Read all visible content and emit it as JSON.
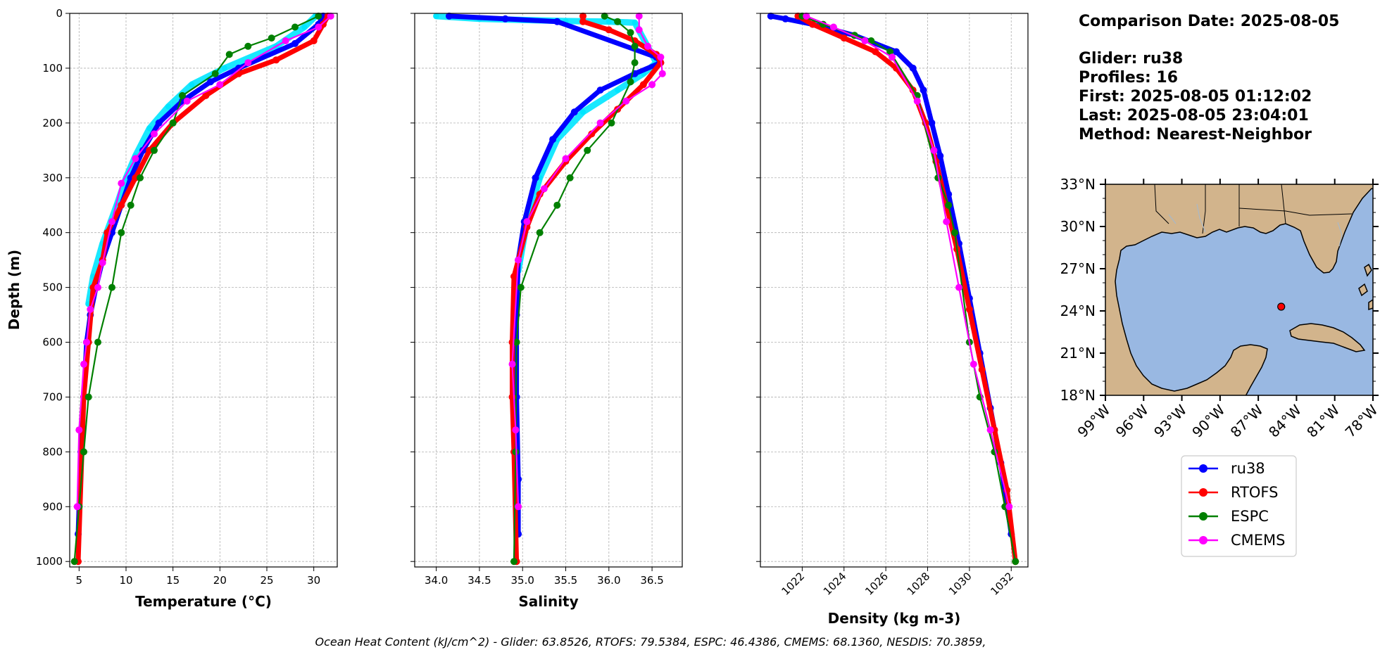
{
  "chart_data": [
    {
      "type": "line",
      "panel": "temperature",
      "xlabel": "Temperature (°C)",
      "ylabel": "Depth (m)",
      "xlim": [
        4,
        32.5
      ],
      "ylim": [
        1010,
        0
      ],
      "xticks": [
        "5",
        "10",
        "15",
        "20",
        "25",
        "30"
      ],
      "yticks": [
        "0",
        "100",
        "200",
        "300",
        "400",
        "500",
        "600",
        "700",
        "800",
        "900",
        "1000"
      ],
      "grid": true,
      "series": [
        {
          "name": "ru38-spread",
          "color": "#00e5ff",
          "x": [
            30.2,
            29.0,
            26.0,
            20.5,
            17.0,
            14.5,
            12.5,
            11.0,
            10.0,
            9.0,
            7.5,
            6.5,
            6.0
          ],
          "y": [
            5,
            25,
            60,
            100,
            130,
            170,
            210,
            260,
            300,
            350,
            420,
            480,
            530
          ]
        },
        {
          "name": "ru38",
          "color": "#0000ff",
          "x": [
            31.0,
            30.5,
            28.0,
            22.0,
            19.0,
            16.0,
            13.5,
            11.8,
            10.5,
            9.5,
            8.5,
            7.5,
            6.8,
            6.2,
            5.8,
            5.5,
            5.2,
            5.0,
            4.9
          ],
          "y": [
            5,
            20,
            55,
            100,
            125,
            160,
            200,
            250,
            300,
            350,
            400,
            450,
            500,
            550,
            600,
            700,
            800,
            900,
            950
          ]
        },
        {
          "name": "RTOFS",
          "color": "#ff0000",
          "x": [
            31.5,
            31.0,
            30.0,
            26.0,
            22.0,
            18.5,
            15.0,
            12.5,
            11.0,
            9.5,
            8.0,
            7.5,
            6.5,
            6.0,
            5.5,
            5.3,
            4.9
          ],
          "y": [
            5,
            20,
            50,
            85,
            110,
            150,
            200,
            250,
            300,
            350,
            400,
            450,
            500,
            600,
            700,
            800,
            1000
          ]
        },
        {
          "name": "ESPC",
          "color": "#008000",
          "x": [
            30.5,
            28.0,
            25.5,
            23.0,
            21.0,
            19.5,
            16.0,
            15.0,
            13.0,
            11.5,
            10.5,
            9.5,
            8.5,
            7.0,
            6.0,
            5.5,
            5.0,
            4.5
          ],
          "y": [
            5,
            25,
            45,
            60,
            75,
            110,
            150,
            200,
            250,
            300,
            350,
            400,
            500,
            600,
            700,
            800,
            900,
            1000
          ]
        },
        {
          "name": "CMEMS",
          "color": "#ff00ff",
          "x": [
            31.8,
            30.5,
            27.0,
            23.0,
            20.0,
            16.5,
            13.0,
            11.0,
            9.5,
            8.5,
            7.5,
            7.0,
            6.2,
            5.8,
            5.5,
            5.0,
            4.8
          ],
          "y": [
            5,
            25,
            50,
            90,
            130,
            160,
            220,
            265,
            310,
            380,
            455,
            500,
            540,
            600,
            640,
            760,
            900
          ]
        }
      ]
    },
    {
      "type": "line",
      "panel": "salinity",
      "xlabel": "Salinity",
      "xlim": [
        33.75,
        36.85
      ],
      "ylim": [
        1010,
        0
      ],
      "xticks": [
        "34.0",
        "34.5",
        "35.0",
        "35.5",
        "36.0",
        "36.5"
      ],
      "grid": true,
      "series": [
        {
          "name": "ru38-spread",
          "color": "#00e5ff",
          "x": [
            34.0,
            34.5,
            35.0,
            35.5,
            36.0,
            36.3,
            36.55,
            36.4,
            36.1,
            35.7,
            35.4,
            35.2,
            35.05,
            34.95
          ],
          "y": [
            5,
            10,
            12,
            14,
            15,
            17,
            90,
            110,
            140,
            180,
            230,
            300,
            380,
            470
          ]
        },
        {
          "name": "ru38",
          "color": "#0000ff",
          "x": [
            34.15,
            34.8,
            35.4,
            36.55,
            36.6,
            36.3,
            35.9,
            35.6,
            35.35,
            35.15,
            35.02,
            34.95,
            34.93,
            34.93,
            34.95,
            34.95
          ],
          "y": [
            5,
            10,
            15,
            80,
            90,
            110,
            140,
            180,
            230,
            300,
            380,
            450,
            550,
            700,
            850,
            950
          ]
        },
        {
          "name": "RTOFS",
          "color": "#ff0000",
          "x": [
            35.7,
            35.7,
            36.0,
            36.3,
            36.55,
            36.6,
            36.4,
            36.1,
            35.8,
            35.5,
            35.2,
            35.05,
            34.9,
            34.88,
            34.88,
            34.9,
            34.93
          ],
          "y": [
            5,
            15,
            30,
            50,
            75,
            90,
            130,
            175,
            220,
            270,
            330,
            390,
            480,
            600,
            700,
            800,
            1000
          ]
        },
        {
          "name": "ESPC",
          "color": "#008000",
          "x": [
            35.95,
            36.1,
            36.25,
            36.3,
            36.3,
            36.25,
            36.03,
            35.75,
            35.55,
            35.4,
            35.2,
            34.98,
            34.93,
            34.92,
            34.9
          ],
          "y": [
            5,
            15,
            35,
            60,
            90,
            125,
            200,
            250,
            300,
            350,
            400,
            500,
            600,
            800,
            1000
          ]
        },
        {
          "name": "CMEMS",
          "color": "#ff00ff",
          "x": [
            36.35,
            36.35,
            36.45,
            36.6,
            36.62,
            36.5,
            36.2,
            35.9,
            35.5,
            35.25,
            35.05,
            34.95,
            34.88,
            34.92,
            34.95
          ],
          "y": [
            5,
            30,
            60,
            80,
            110,
            130,
            160,
            200,
            265,
            320,
            380,
            450,
            640,
            760,
            900
          ]
        }
      ]
    },
    {
      "type": "line",
      "panel": "density",
      "xlabel": "Density (kg m-3)",
      "xlim": [
        1020.0,
        1032.8
      ],
      "ylim": [
        1010,
        0
      ],
      "xticks": [
        "1022",
        "1024",
        "1026",
        "1028",
        "1030",
        "1032"
      ],
      "grid": true,
      "series": [
        {
          "name": "ru38",
          "color": "#0000ff",
          "x": [
            1020.5,
            1021.2,
            1022.5,
            1024.5,
            1026.5,
            1027.3,
            1027.8,
            1028.2,
            1028.6,
            1029.0,
            1029.5,
            1030.0,
            1030.5,
            1031.0,
            1031.5,
            1032.0
          ],
          "y": [
            5,
            10,
            20,
            40,
            70,
            100,
            140,
            200,
            260,
            330,
            420,
            520,
            620,
            720,
            820,
            950
          ]
        },
        {
          "name": "RTOFS",
          "color": "#ff0000",
          "x": [
            1021.8,
            1022.5,
            1024.0,
            1025.5,
            1026.5,
            1027.3,
            1027.9,
            1028.4,
            1028.9,
            1029.4,
            1030.0,
            1030.6,
            1031.2,
            1031.8,
            1032.2
          ],
          "y": [
            5,
            20,
            45,
            70,
            100,
            140,
            200,
            270,
            350,
            430,
            540,
            650,
            760,
            870,
            1000
          ]
        },
        {
          "name": "ESPC",
          "color": "#008000",
          "x": [
            1022.0,
            1023.0,
            1024.5,
            1025.3,
            1026.2,
            1027.5,
            1028.5,
            1029.0,
            1029.3,
            1030.0,
            1030.5,
            1031.2,
            1031.7,
            1032.2
          ],
          "y": [
            5,
            20,
            40,
            50,
            70,
            150,
            300,
            350,
            400,
            600,
            700,
            800,
            900,
            1000
          ]
        },
        {
          "name": "CMEMS",
          "color": "#ff00ff",
          "x": [
            1022.2,
            1023.5,
            1025.0,
            1026.3,
            1027.5,
            1028.3,
            1028.9,
            1029.5,
            1030.2,
            1031.0,
            1031.9
          ],
          "y": [
            5,
            25,
            50,
            80,
            160,
            250,
            380,
            500,
            640,
            760,
            900
          ]
        }
      ]
    }
  ],
  "info": {
    "comparison_date": "Comparison Date: 2025-08-05",
    "glider": "Glider: ru38",
    "profiles": "Profiles: 16",
    "first": "First: 2025-08-05 01:12:02",
    "last": "Last: 2025-08-05 23:04:01",
    "method": "Method: Nearest-Neighbor"
  },
  "map": {
    "lat_labels": [
      "33°N",
      "30°N",
      "27°N",
      "24°N",
      "21°N",
      "18°N"
    ],
    "lon_labels": [
      "99°W",
      "96°W",
      "93°W",
      "90°W",
      "87°W",
      "84°W",
      "81°W",
      "78°W"
    ],
    "glider_lon": -85.2,
    "glider_lat": 24.3,
    "ocean_color": "#99b8e2",
    "land_color": "#d2b48c",
    "marker_color": "#ff0000"
  },
  "legend": [
    {
      "label": "ru38",
      "color": "#0000ff"
    },
    {
      "label": "RTOFS",
      "color": "#ff0000"
    },
    {
      "label": "ESPC",
      "color": "#008000"
    },
    {
      "label": "CMEMS",
      "color": "#ff00ff"
    }
  ],
  "footer": "Ocean Heat Content (kJ/cm^2) - Glider: 63.8526,  RTOFS: 79.5384,  ESPC: 46.4386,  CMEMS: 68.1360,  NESDIS: 70.3859,"
}
